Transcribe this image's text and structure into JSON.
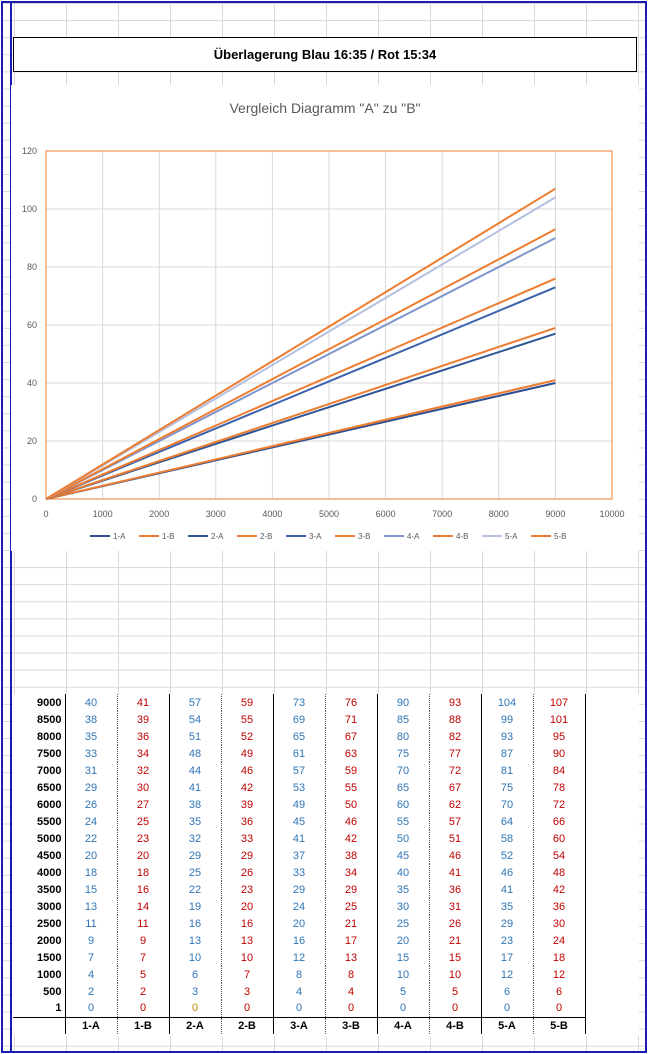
{
  "sheet_title": "Überlagerung Blau 16:35 / Rot 15:34",
  "chart_data": {
    "type": "line",
    "title": "Vergleich Diagramm \"A\" zu \"B\"",
    "xlim": [
      0,
      10000
    ],
    "ylim": [
      0,
      120
    ],
    "xticks": [
      "0",
      "1000",
      "2000",
      "3000",
      "4000",
      "5000",
      "6000",
      "7000",
      "8000",
      "9000",
      "10000"
    ],
    "yticks": [
      "0",
      "20",
      "40",
      "60",
      "80",
      "100",
      "120"
    ],
    "grid": true,
    "legend_position": "bottom",
    "x": [
      0,
      9000
    ],
    "series": [
      {
        "name": "1-A",
        "color": "#2f4f8f",
        "values": [
          0,
          40
        ]
      },
      {
        "name": "1-B",
        "color": "#ed7d31",
        "values": [
          0,
          41
        ]
      },
      {
        "name": "2-A",
        "color": "#2f5597",
        "values": [
          0,
          57
        ]
      },
      {
        "name": "2-B",
        "color": "#ed7d31",
        "values": [
          0,
          59
        ]
      },
      {
        "name": "3-A",
        "color": "#3c64ae",
        "values": [
          0,
          73
        ]
      },
      {
        "name": "3-B",
        "color": "#ed7d31",
        "values": [
          0,
          76
        ]
      },
      {
        "name": "4-A",
        "color": "#7f96cc",
        "values": [
          0,
          90
        ]
      },
      {
        "name": "4-B",
        "color": "#ed7d31",
        "values": [
          0,
          93
        ]
      },
      {
        "name": "5-A",
        "color": "#b4c0e0",
        "values": [
          0,
          104
        ]
      },
      {
        "name": "5-B",
        "color": "#ed7d31",
        "values": [
          0,
          107
        ]
      }
    ]
  },
  "table": {
    "row_labels": [
      "9000",
      "8500",
      "8000",
      "7500",
      "7000",
      "6500",
      "6000",
      "5500",
      "5000",
      "4500",
      "4000",
      "3500",
      "3000",
      "2500",
      "2000",
      "1500",
      "1000",
      "500",
      "1"
    ],
    "columns": [
      "1-A",
      "1-B",
      "2-A",
      "2-B",
      "3-A",
      "3-B",
      "4-A",
      "4-B",
      "5-A",
      "5-B"
    ],
    "rows": [
      [
        40,
        41,
        57,
        59,
        73,
        76,
        90,
        93,
        104,
        107
      ],
      [
        38,
        39,
        54,
        55,
        69,
        71,
        85,
        88,
        99,
        101
      ],
      [
        35,
        36,
        51,
        52,
        65,
        67,
        80,
        82,
        93,
        95
      ],
      [
        33,
        34,
        48,
        49,
        61,
        63,
        75,
        77,
        87,
        90
      ],
      [
        31,
        32,
        44,
        46,
        57,
        59,
        70,
        72,
        81,
        84
      ],
      [
        29,
        30,
        41,
        42,
        53,
        55,
        65,
        67,
        75,
        78
      ],
      [
        26,
        27,
        38,
        39,
        49,
        50,
        60,
        62,
        70,
        72
      ],
      [
        24,
        25,
        35,
        36,
        45,
        46,
        55,
        57,
        64,
        66
      ],
      [
        22,
        23,
        32,
        33,
        41,
        42,
        50,
        51,
        58,
        60
      ],
      [
        20,
        20,
        29,
        29,
        37,
        38,
        45,
        46,
        52,
        54
      ],
      [
        18,
        18,
        25,
        26,
        33,
        34,
        40,
        41,
        46,
        48
      ],
      [
        15,
        16,
        22,
        23,
        29,
        29,
        35,
        36,
        41,
        42
      ],
      [
        13,
        14,
        19,
        20,
        24,
        25,
        30,
        31,
        35,
        36
      ],
      [
        11,
        11,
        16,
        16,
        20,
        21,
        25,
        26,
        29,
        30
      ],
      [
        9,
        9,
        13,
        13,
        16,
        17,
        20,
        21,
        23,
        24
      ],
      [
        7,
        7,
        10,
        10,
        12,
        13,
        15,
        15,
        17,
        18
      ],
      [
        4,
        5,
        6,
        7,
        8,
        8,
        10,
        10,
        12,
        12
      ],
      [
        2,
        2,
        3,
        3,
        4,
        4,
        5,
        5,
        6,
        6
      ],
      [
        0,
        0,
        0,
        0,
        0,
        0,
        0,
        0,
        0,
        0
      ]
    ]
  },
  "colors": {
    "a_text": "#2e74b5",
    "b_text": "#c00000",
    "frame": "#1a1ab4",
    "plot_border": "#ed7d31"
  }
}
